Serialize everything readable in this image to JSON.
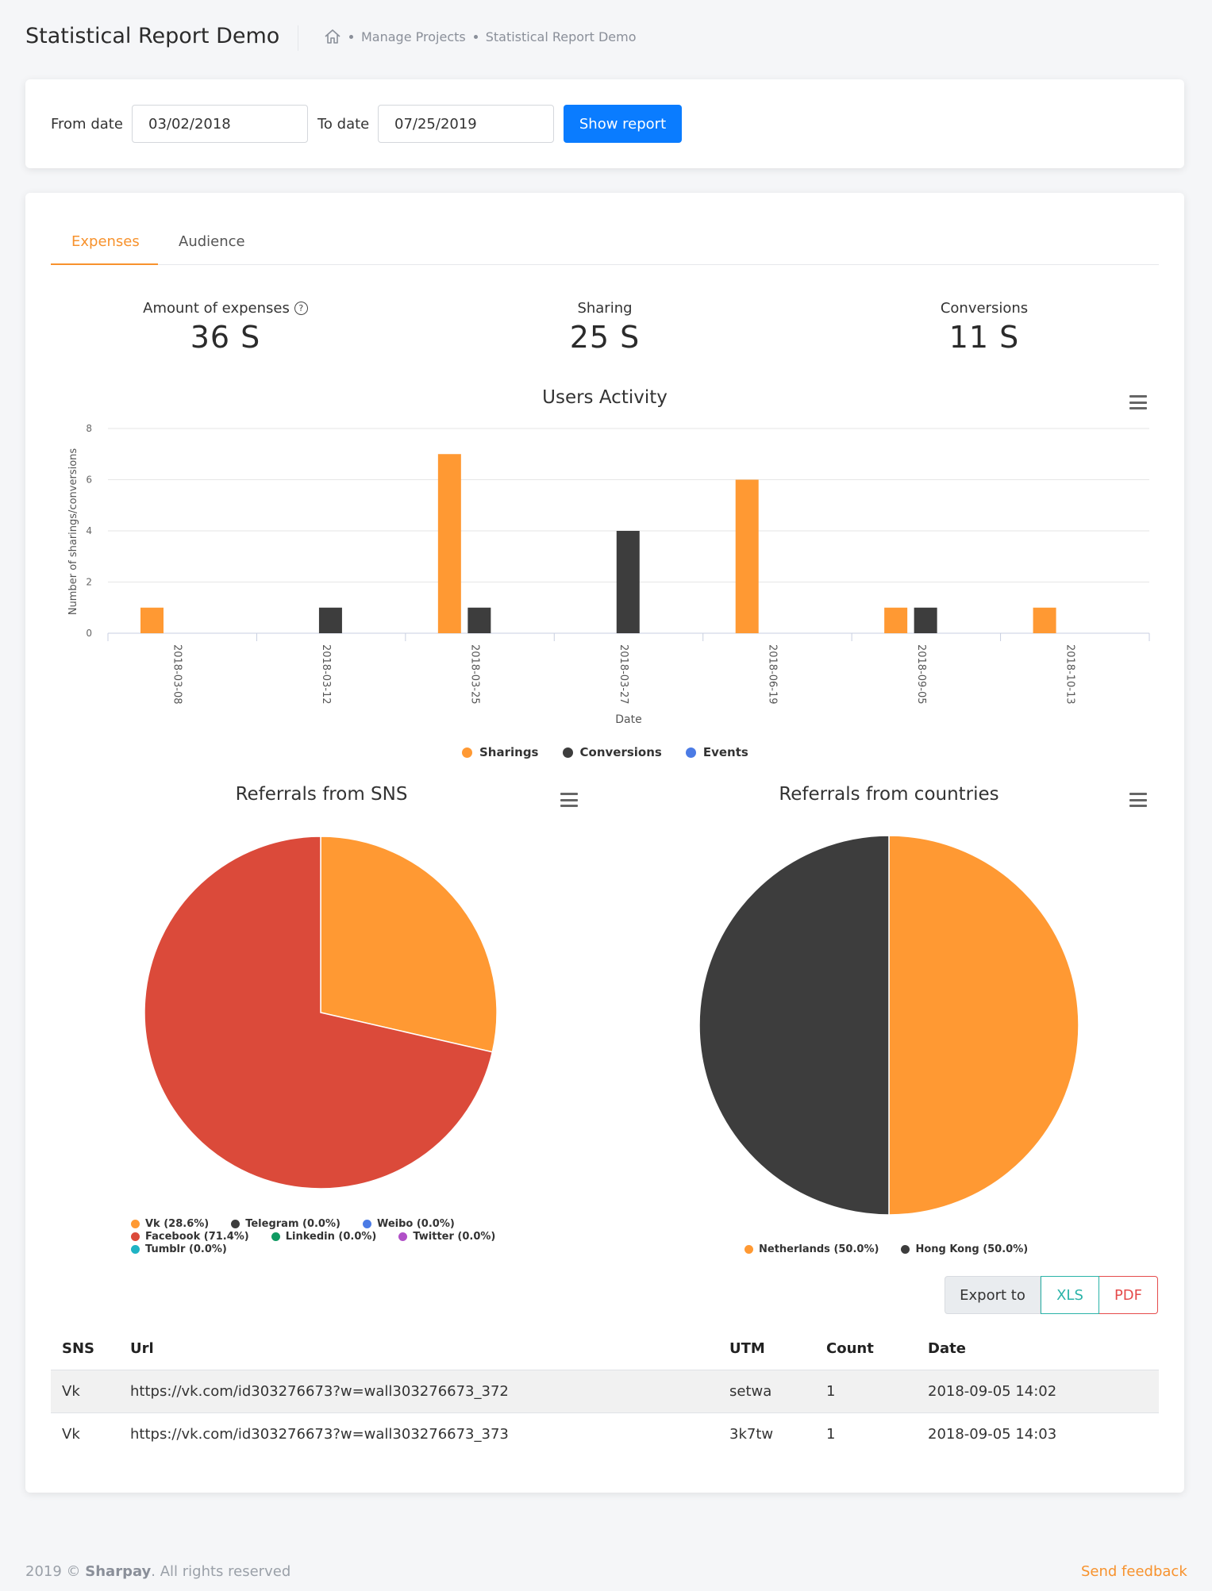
{
  "header": {
    "title": "Statistical Report Demo",
    "breadcrumbs": [
      "Manage Projects",
      "Statistical Report Demo"
    ]
  },
  "filter": {
    "from_label": "From date",
    "from_value": "03/02/2018",
    "to_label": "To date",
    "to_value": "07/25/2019",
    "button": "Show report"
  },
  "tabs": [
    {
      "label": "Expenses",
      "active": true
    },
    {
      "label": "Audience",
      "active": false
    }
  ],
  "stats": [
    {
      "label": "Amount of expenses",
      "value": "36 S"
    },
    {
      "label": "Sharing",
      "value": "25 S"
    },
    {
      "label": "Conversions",
      "value": "11 S"
    }
  ],
  "colors": {
    "accent": "#f7922d",
    "primary": "#0a7cff",
    "sharings": "#ff9933",
    "conversions": "#3d3d3d",
    "events": "#4b7be5",
    "facebook": "#db4a3a"
  },
  "chart_data": [
    {
      "type": "bar",
      "title": "Users Activity",
      "xlabel": "Date",
      "ylabel": "Number of sharings/conversions",
      "ylim": [
        0,
        8
      ],
      "yticks": [
        0,
        2,
        4,
        6,
        8
      ],
      "categories": [
        "2018-03-08",
        "2018-03-12",
        "2018-03-25",
        "2018-03-27",
        "2018-06-19",
        "2018-09-05",
        "2018-10-13"
      ],
      "series": [
        {
          "name": "Sharings",
          "color": "#ff9933",
          "values": [
            1,
            0,
            7,
            0,
            6,
            1,
            1
          ]
        },
        {
          "name": "Conversions",
          "color": "#3d3d3d",
          "values": [
            0,
            1,
            1,
            4,
            0,
            1,
            0
          ]
        },
        {
          "name": "Events",
          "color": "#4b7be5",
          "values": [
            0,
            0,
            0,
            0,
            0,
            0,
            0
          ]
        }
      ],
      "legend_position": "bottom-center",
      "grid": true
    },
    {
      "type": "pie",
      "title": "Referrals from SNS",
      "slices": [
        {
          "name": "Vk",
          "percent": 28.6,
          "color": "#ff9933",
          "label": "Vk (28.6%)"
        },
        {
          "name": "Facebook",
          "percent": 71.4,
          "color": "#db4a3a",
          "label": "Facebook (71.4%)"
        },
        {
          "name": "Tumblr",
          "percent": 0.0,
          "color": "#1fb3c4",
          "label": "Tumblr (0.0%)"
        },
        {
          "name": "Telegram",
          "percent": 0.0,
          "color": "#3d3d3d",
          "label": "Telegram (0.0%)"
        },
        {
          "name": "Linkedin",
          "percent": 0.0,
          "color": "#0f9a62",
          "label": "Linkedin (0.0%)"
        },
        {
          "name": "Weibo",
          "percent": 0.0,
          "color": "#4b7be5",
          "label": "Weibo (0.0%)"
        },
        {
          "name": "Twitter",
          "percent": 0.0,
          "color": "#b04fc7",
          "label": "Twitter (0.0%)"
        }
      ],
      "legend_position": "bottom"
    },
    {
      "type": "pie",
      "title": "Referrals from countries",
      "slices": [
        {
          "name": "Netherlands",
          "percent": 50.0,
          "color": "#ff9933",
          "label": "Netherlands (50.0%)"
        },
        {
          "name": "Hong Kong",
          "percent": 50.0,
          "color": "#3d3d3d",
          "label": "Hong Kong (50.0%)"
        }
      ],
      "legend_position": "bottom"
    }
  ],
  "export": {
    "label": "Export to",
    "xls": "XLS",
    "pdf": "PDF"
  },
  "table": {
    "columns": [
      "SNS",
      "Url",
      "UTM",
      "Count",
      "Date"
    ],
    "rows": [
      [
        "Vk",
        "https://vk.com/id303276673?w=wall303276673_372",
        "setwa",
        "1",
        "2018-09-05 14:02"
      ],
      [
        "Vk",
        "https://vk.com/id303276673?w=wall303276673_373",
        "3k7tw",
        "1",
        "2018-09-05 14:03"
      ]
    ]
  },
  "footer": {
    "year": "2019 ©",
    "brand": "Sharpay",
    "rights": ". All rights reserved",
    "feedback": "Send feedback"
  }
}
